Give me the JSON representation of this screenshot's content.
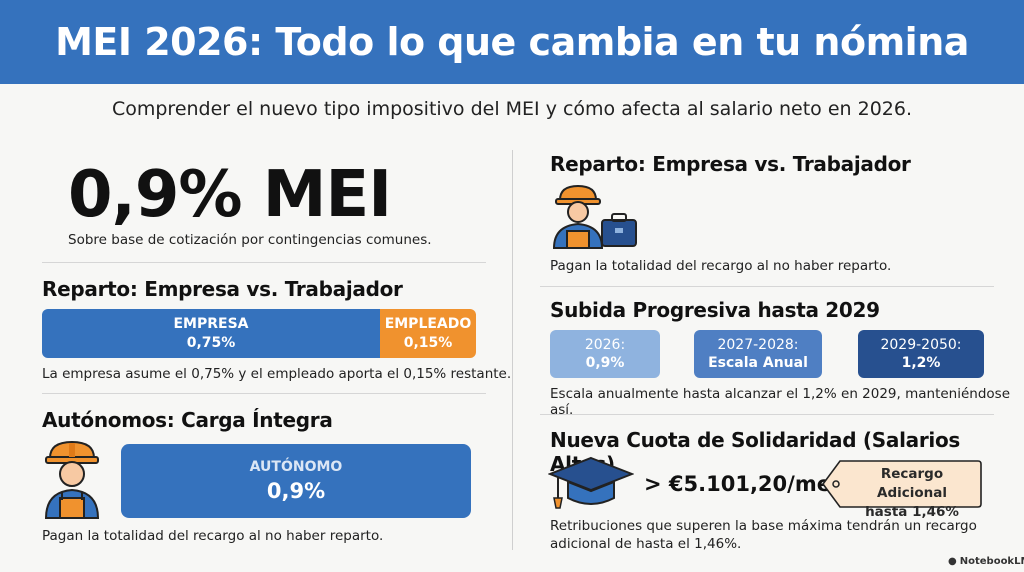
{
  "header": {
    "title": "MEI 2026: Todo lo que cambia en tu nómina",
    "subtitle": "Comprender el nuevo tipo impositivo del MEI y cómo afecta al salario neto en 2026."
  },
  "left": {
    "headline": "0,9% MEI",
    "headline_note": "Sobre base de cotización por contingencias comunes.",
    "split_section": {
      "title": "Reparto: Empresa vs. Trabajador",
      "empresa_label": "EMPRESA",
      "empresa_value": "0,75%",
      "empleado_label": "EMPLEADO",
      "empleado_value": "0,15%",
      "note": "La empresa asume el 0,75% y el empleado aporta el 0,15% restante."
    },
    "autonomos_section": {
      "title": "Autónomos: Carga Íntegra",
      "box_label": "AUTÓNOMO",
      "box_value": "0,9%",
      "note": "Pagan la totalidad del recargo al no haber reparto."
    }
  },
  "right": {
    "split_section": {
      "title": "Reparto: Empresa vs. Trabajador",
      "note": "Pagan la totalidad del recargo al no haber reparto."
    },
    "progressive_section": {
      "title": "Subida Progresiva hasta 2029",
      "stages": [
        {
          "period": "2026:",
          "value": "0,9%"
        },
        {
          "period": "2027-2028:",
          "value": "Escala Anual"
        },
        {
          "period": "2029-2050:",
          "value": "1,2%"
        }
      ],
      "note": "Escala anualmente hasta alcanzar el 1,2% en 2029, manteniéndose así."
    },
    "solidarity_section": {
      "title": "Nueva Cuota de Solidaridad (Salarios Altos)",
      "amount": "> €5.101,20/mes",
      "tag_line1": "Recargo Adicional",
      "tag_line2": "hasta 1,46%",
      "note_line1": "Retribuciones que superen la base máxima tendrán un recargo",
      "note_line2": "adicional de hasta el 1,46%."
    }
  },
  "footer": {
    "brand": "NotebookLM"
  },
  "colors": {
    "banner": "#3572bd",
    "empresa": "#3572bd",
    "empleado": "#f0922e",
    "stage_light": "#8fb3df",
    "stage_mid": "#4f7fc3",
    "stage_dark": "#27508f",
    "tag": "#fbe6cf"
  }
}
